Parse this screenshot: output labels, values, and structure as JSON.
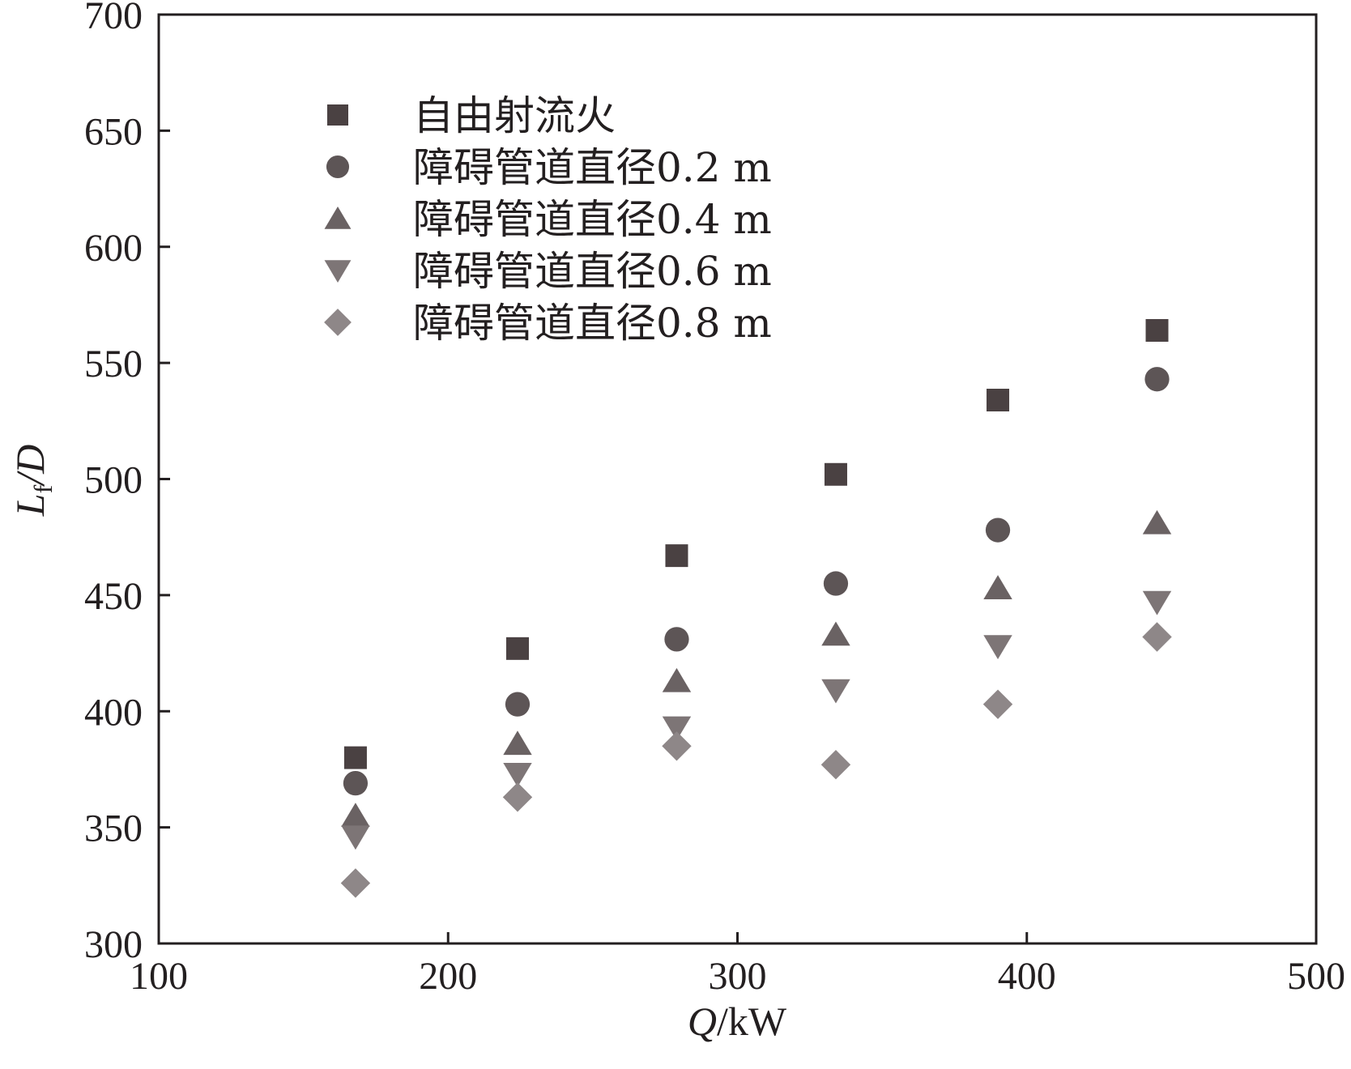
{
  "chart_data": {
    "type": "scatter",
    "xlabel": {
      "var": "Q",
      "unit": "/kW"
    },
    "ylabel": {
      "var": "L",
      "sub": "f",
      "rest": "/D"
    },
    "xlim": [
      100,
      500
    ],
    "ylim": [
      300,
      700
    ],
    "xticks": [
      100,
      200,
      300,
      400,
      500
    ],
    "yticks": [
      300,
      350,
      400,
      450,
      500,
      550,
      600,
      650,
      700
    ],
    "grid": false,
    "legend_position": "top-left",
    "x": [
      168,
      224,
      279,
      334,
      390,
      445
    ],
    "series": [
      {
        "name": "自由射流火",
        "marker": "square",
        "color": "#4a4142",
        "values": [
          380,
          427,
          467,
          502,
          534,
          564
        ]
      },
      {
        "name": "障碍管道直径0.2 m",
        "marker": "circle",
        "color": "#5d5556",
        "values": [
          369,
          403,
          431,
          455,
          478,
          543
        ]
      },
      {
        "name": "障碍管道直径0.4 m",
        "marker": "triangle-up",
        "color": "#6a6263",
        "values": [
          355,
          386,
          413,
          433,
          453,
          481
        ]
      },
      {
        "name": "障碍管道直径0.6 m",
        "marker": "triangle-down",
        "color": "#7d7576",
        "values": [
          346,
          373,
          393,
          409,
          428,
          447
        ]
      },
      {
        "name": "障碍管道直径0.8 m",
        "marker": "diamond",
        "color": "#8e8788",
        "values": [
          326,
          363,
          385,
          377,
          403,
          432
        ]
      }
    ]
  }
}
